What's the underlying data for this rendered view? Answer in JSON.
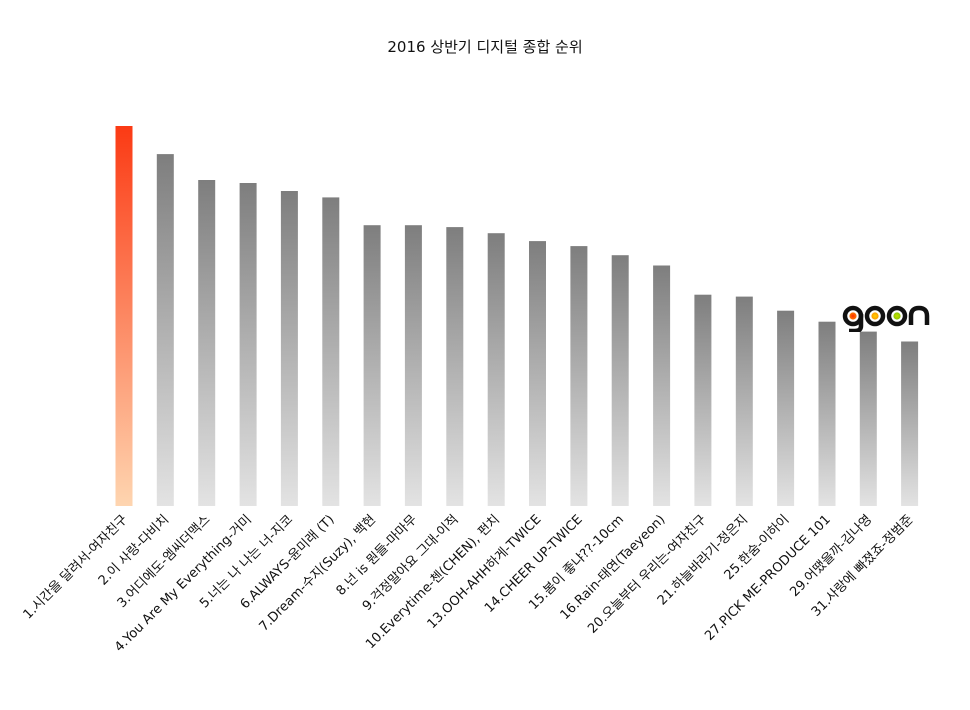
{
  "chart_data": {
    "type": "bar",
    "title": "2016 상반기 디지털 종합 순위",
    "xlabel": "",
    "ylabel": "",
    "grid": false,
    "categories": [
      "1.시간을 달려서-여자친구",
      "2.이 사랑-다비치",
      "3.어디에도-엠씨더맥스",
      "4.You Are My Everything-거미",
      "5.너는 나 나는 너-지코",
      "6.ALWAYS-윤미래 (T)",
      "7.Dream-수지(Suzy), 백현",
      "8.넌 is 뭔들-마마무",
      "9.걱정말아요 그대-이적",
      "10.Everytime-첸(CHEN), 펀치",
      "13.OOH-AHH하게-TWICE",
      "14.CHEER UP-TWICE",
      "15.봄이 좋냐??-10cm",
      "16.Rain-태연(Taeyeon)",
      "20.오늘부터 우리는-여자친구",
      "21.하늘바라기-정은지",
      "25.한숨-이하이",
      "27.PICK ME-PRODUCE 101",
      "29.어땠을까-김나영",
      "31.사랑에 빠졌죠-정범준"
    ],
    "values": [
      100,
      92.6,
      85.8,
      85.0,
      82.9,
      81.2,
      73.9,
      73.9,
      73.4,
      71.8,
      69.7,
      68.4,
      66.0,
      63.3,
      55.6,
      55.1,
      51.4,
      48.5,
      45.9,
      43.3
    ],
    "ylim": [
      0,
      100
    ],
    "colors": {
      "highlight_top": "#fb3a14",
      "highlight_bottom": "#fed5b0",
      "bar_top": "#7e7e7e",
      "bar_bottom": "#e3e3e3"
    }
  },
  "logo_text": "gaon"
}
